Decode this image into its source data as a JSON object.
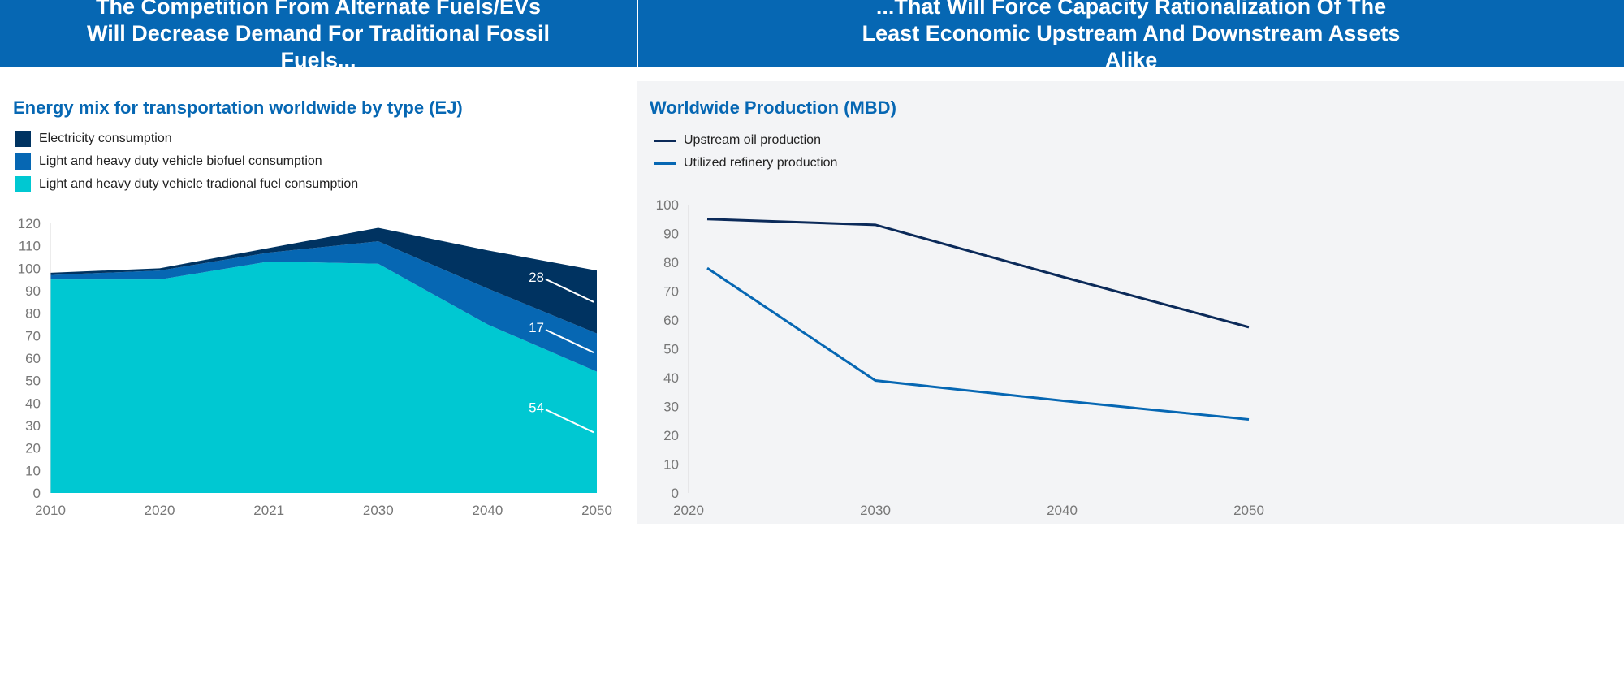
{
  "header": {
    "left": "The Competition From Alternate Fuels/EVs Will Decrease Demand For Traditional Fossil Fuels...",
    "right": "...That Will Force Capacity Rationalization Of The Least Economic Upstream And Downstream Assets Alike"
  },
  "chart_data": [
    {
      "type": "area",
      "stacked": true,
      "title": "Energy mix for transportation worldwide by type (EJ)",
      "categories": [
        "2010",
        "2020",
        "2021",
        "2030",
        "2040",
        "2050"
      ],
      "ylim": [
        0,
        120
      ],
      "yticks": [
        0,
        10,
        20,
        30,
        40,
        50,
        60,
        70,
        80,
        90,
        100,
        110,
        120
      ],
      "legend_position": "top-left",
      "grid": false,
      "series": [
        {
          "name": "Light and heavy duty vehicle tradional fuel consumption",
          "color": "#00c8d2",
          "values": [
            95,
            95,
            103,
            102,
            75,
            54
          ]
        },
        {
          "name": "Light and heavy duty vehicle biofuel consumption",
          "color": "#0667b3",
          "values": [
            2,
            4,
            4,
            10,
            16,
            17
          ]
        },
        {
          "name": "Electricity consumption",
          "color": "#003361",
          "values": [
            1,
            1,
            2,
            6,
            17,
            28
          ]
        }
      ],
      "data_labels": [
        "54",
        "17",
        "28"
      ]
    },
    {
      "type": "line",
      "title": "Worldwide Production (MBD)",
      "xlim": [
        2020,
        2050
      ],
      "xticks": [
        "2020",
        "2030",
        "2040",
        "2050"
      ],
      "ylim": [
        0,
        100
      ],
      "yticks": [
        0,
        10,
        20,
        30,
        40,
        50,
        60,
        70,
        80,
        90,
        100
      ],
      "legend_position": "top-left",
      "grid": false,
      "series": [
        {
          "name": "Upstream oil production",
          "color": "#0b2a59",
          "x": [
            2021,
            2030,
            2040,
            2050
          ],
          "y": [
            95,
            93,
            75,
            57.5
          ]
        },
        {
          "name": "Utilized refinery production",
          "color": "#0667b3",
          "x": [
            2021,
            2030,
            2040,
            2050
          ],
          "y": [
            78,
            39,
            32,
            25.5
          ]
        }
      ]
    }
  ]
}
